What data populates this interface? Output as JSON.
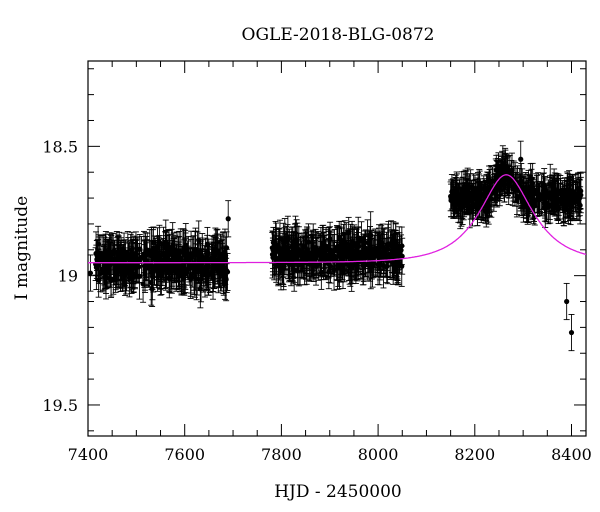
{
  "chart_data": {
    "type": "scatter",
    "title": "OGLE-2018-BLG-0872",
    "xlabel": "HJD - 2450000",
    "ylabel": "I magnitude",
    "xlim": [
      7400,
      8430
    ],
    "ylim": [
      19.62,
      18.17
    ],
    "y_inverted": true,
    "x_ticks": [
      7400,
      7600,
      7800,
      8000,
      8200,
      8400
    ],
    "x_tick_labels": [
      "7400",
      "7600",
      "7800",
      "8000",
      "8200",
      "8400"
    ],
    "y_ticks": [
      18.5,
      19,
      19.5
    ],
    "y_tick_labels": [
      "18.5",
      "19",
      "19.5"
    ],
    "grid": false,
    "legend": "none",
    "series": [
      {
        "kind": "points-with-errorbars",
        "color": "#000000",
        "seasons": [
          {
            "x_range": [
              7415,
              7690
            ],
            "median_mag": 18.95,
            "scatter": 0.09,
            "errorbar": 0.07
          },
          {
            "x_range": [
              7780,
              8050
            ],
            "median_mag": 18.92,
            "scatter": 0.07,
            "errorbar": 0.07
          },
          {
            "x_range": [
              8150,
              8420
            ],
            "median_mag": 18.7,
            "scatter": 0.06,
            "errorbar": 0.06
          }
        ],
        "outliers": [
          {
            "x": 7405,
            "y": 18.99
          },
          {
            "x": 7690,
            "y": 18.78
          },
          {
            "x": 8390,
            "y": 19.1
          },
          {
            "x": 8400,
            "y": 19.22
          },
          {
            "x": 8418,
            "y": 18.67
          },
          {
            "x": 8295,
            "y": 18.55
          }
        ]
      },
      {
        "kind": "model-curve",
        "color": "#e020e0",
        "baseline_mag": 18.95,
        "peak_time": 8265,
        "peak_mag": 18.61,
        "u0": 0.55,
        "tE": 90
      }
    ]
  }
}
